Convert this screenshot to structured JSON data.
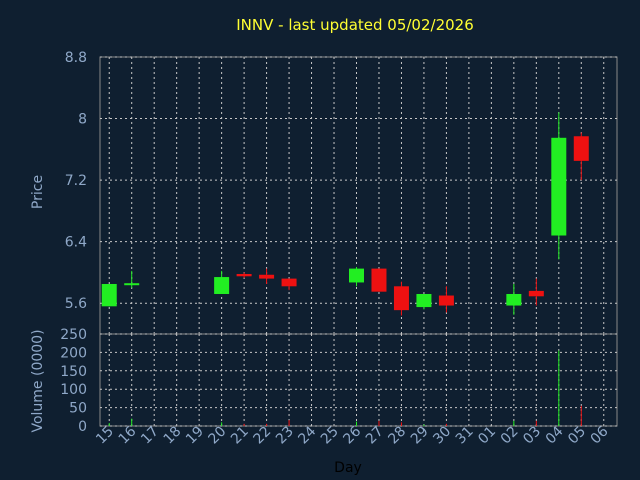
{
  "chart_data": {
    "type": "candlestick",
    "title": "INNV - last updated 05/02/2026",
    "xlabel": "Day",
    "price_panel": {
      "ylabel": "Price",
      "ylim": [
        5.2,
        8.8
      ],
      "yticks": [
        "8.8",
        "8",
        "7.2",
        "6.4",
        "5.6"
      ]
    },
    "volume_panel": {
      "ylabel": "Volume (0000)",
      "ylim": [
        0,
        250
      ],
      "yticks": [
        "250",
        "200",
        "150",
        "100",
        "50",
        "0"
      ]
    },
    "x_ticks": [
      "15",
      "16",
      "17",
      "18",
      "19",
      "20",
      "21",
      "22",
      "23",
      "24",
      "25",
      "26",
      "27",
      "28",
      "29",
      "30",
      "31",
      "01",
      "02",
      "03",
      "04",
      "05",
      "06"
    ],
    "candles": [
      {
        "day": "15",
        "open": 5.56,
        "close": 5.85,
        "high": 5.85,
        "low": 5.56,
        "volume": 8
      },
      {
        "day": "16",
        "open": 5.84,
        "close": 5.86,
        "high": 6.02,
        "low": 5.8,
        "volume": 20
      },
      {
        "day": "20",
        "open": 5.72,
        "close": 5.94,
        "high": 6.02,
        "low": 5.72,
        "volume": 10
      },
      {
        "day": "21",
        "open": 5.98,
        "close": 5.95,
        "high": 6.0,
        "low": 5.93,
        "volume": 6
      },
      {
        "day": "22",
        "open": 5.97,
        "close": 5.92,
        "high": 6.05,
        "low": 5.85,
        "volume": 6
      },
      {
        "day": "23",
        "open": 5.92,
        "close": 5.82,
        "high": 5.92,
        "low": 5.77,
        "volume": 16
      },
      {
        "day": "26",
        "open": 5.87,
        "close": 6.05,
        "high": 6.07,
        "low": 5.82,
        "volume": 12
      },
      {
        "day": "27",
        "open": 6.05,
        "close": 5.75,
        "high": 6.05,
        "low": 5.75,
        "volume": 14
      },
      {
        "day": "28",
        "open": 5.82,
        "close": 5.51,
        "high": 5.88,
        "low": 5.44,
        "volume": 10
      },
      {
        "day": "29",
        "open": 5.55,
        "close": 5.72,
        "high": 5.72,
        "low": 5.52,
        "volume": 4
      },
      {
        "day": "30",
        "open": 5.7,
        "close": 5.57,
        "high": 5.82,
        "low": 5.48,
        "volume": 6
      },
      {
        "day": "02",
        "open": 5.57,
        "close": 5.72,
        "high": 5.85,
        "low": 5.45,
        "volume": 14
      },
      {
        "day": "03",
        "open": 5.76,
        "close": 5.69,
        "high": 5.92,
        "low": 5.57,
        "volume": 14
      },
      {
        "day": "04",
        "open": 6.48,
        "close": 7.75,
        "high": 8.08,
        "low": 6.17,
        "volume": 205
      },
      {
        "day": "05",
        "open": 7.77,
        "close": 7.45,
        "high": 7.82,
        "low": 7.2,
        "volume": 55
      }
    ],
    "grid": true,
    "colors": {
      "background": "#0f1f30",
      "up": "#22ee22",
      "down": "#ee1111",
      "grid": "#c8c8c8",
      "axis_text": "#8fa8c8",
      "title": "#ffff33"
    }
  }
}
